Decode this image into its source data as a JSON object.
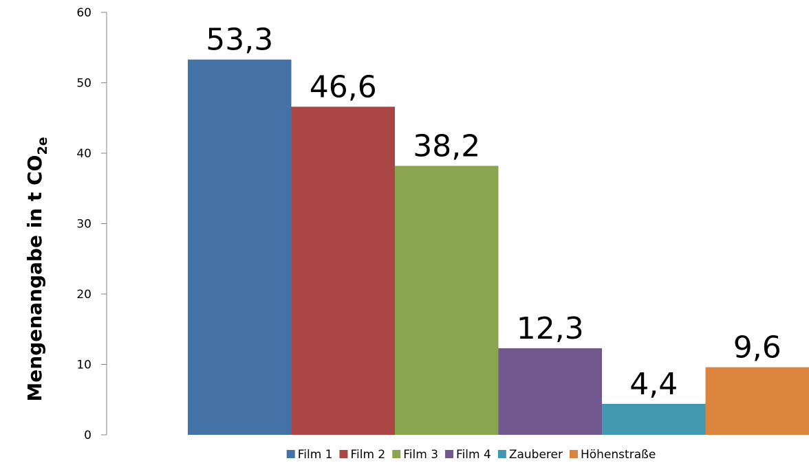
{
  "chart_data": {
    "type": "bar",
    "y_label": "Mengenangabe in t CO",
    "y_label_subscript": "2e",
    "categories": [
      null
    ],
    "series": [
      {
        "name": "Film 1",
        "color": "#4572a7",
        "values": [
          53.3
        ],
        "value_labels": [
          "53,3"
        ]
      },
      {
        "name": "Film 2",
        "color": "#aa4643",
        "values": [
          46.6
        ],
        "value_labels": [
          "46,6"
        ]
      },
      {
        "name": "Film 3",
        "color": "#89a54e",
        "values": [
          38.2
        ],
        "value_labels": [
          "38,2"
        ]
      },
      {
        "name": "Film 4",
        "color": "#71588f",
        "values": [
          12.3
        ],
        "value_labels": [
          "12,3"
        ]
      },
      {
        "name": "Zauberer",
        "color": "#4198af",
        "values": [
          4.4
        ],
        "value_labels": [
          "4,4"
        ]
      },
      {
        "name": "Höhenstraße",
        "color": "#db843d",
        "values": [
          9.6
        ],
        "value_labels": [
          "9,6"
        ]
      }
    ],
    "ylim": [
      0,
      60
    ],
    "yticks": [
      0,
      10,
      20,
      30,
      40,
      50,
      60
    ],
    "legend": "bottom"
  }
}
